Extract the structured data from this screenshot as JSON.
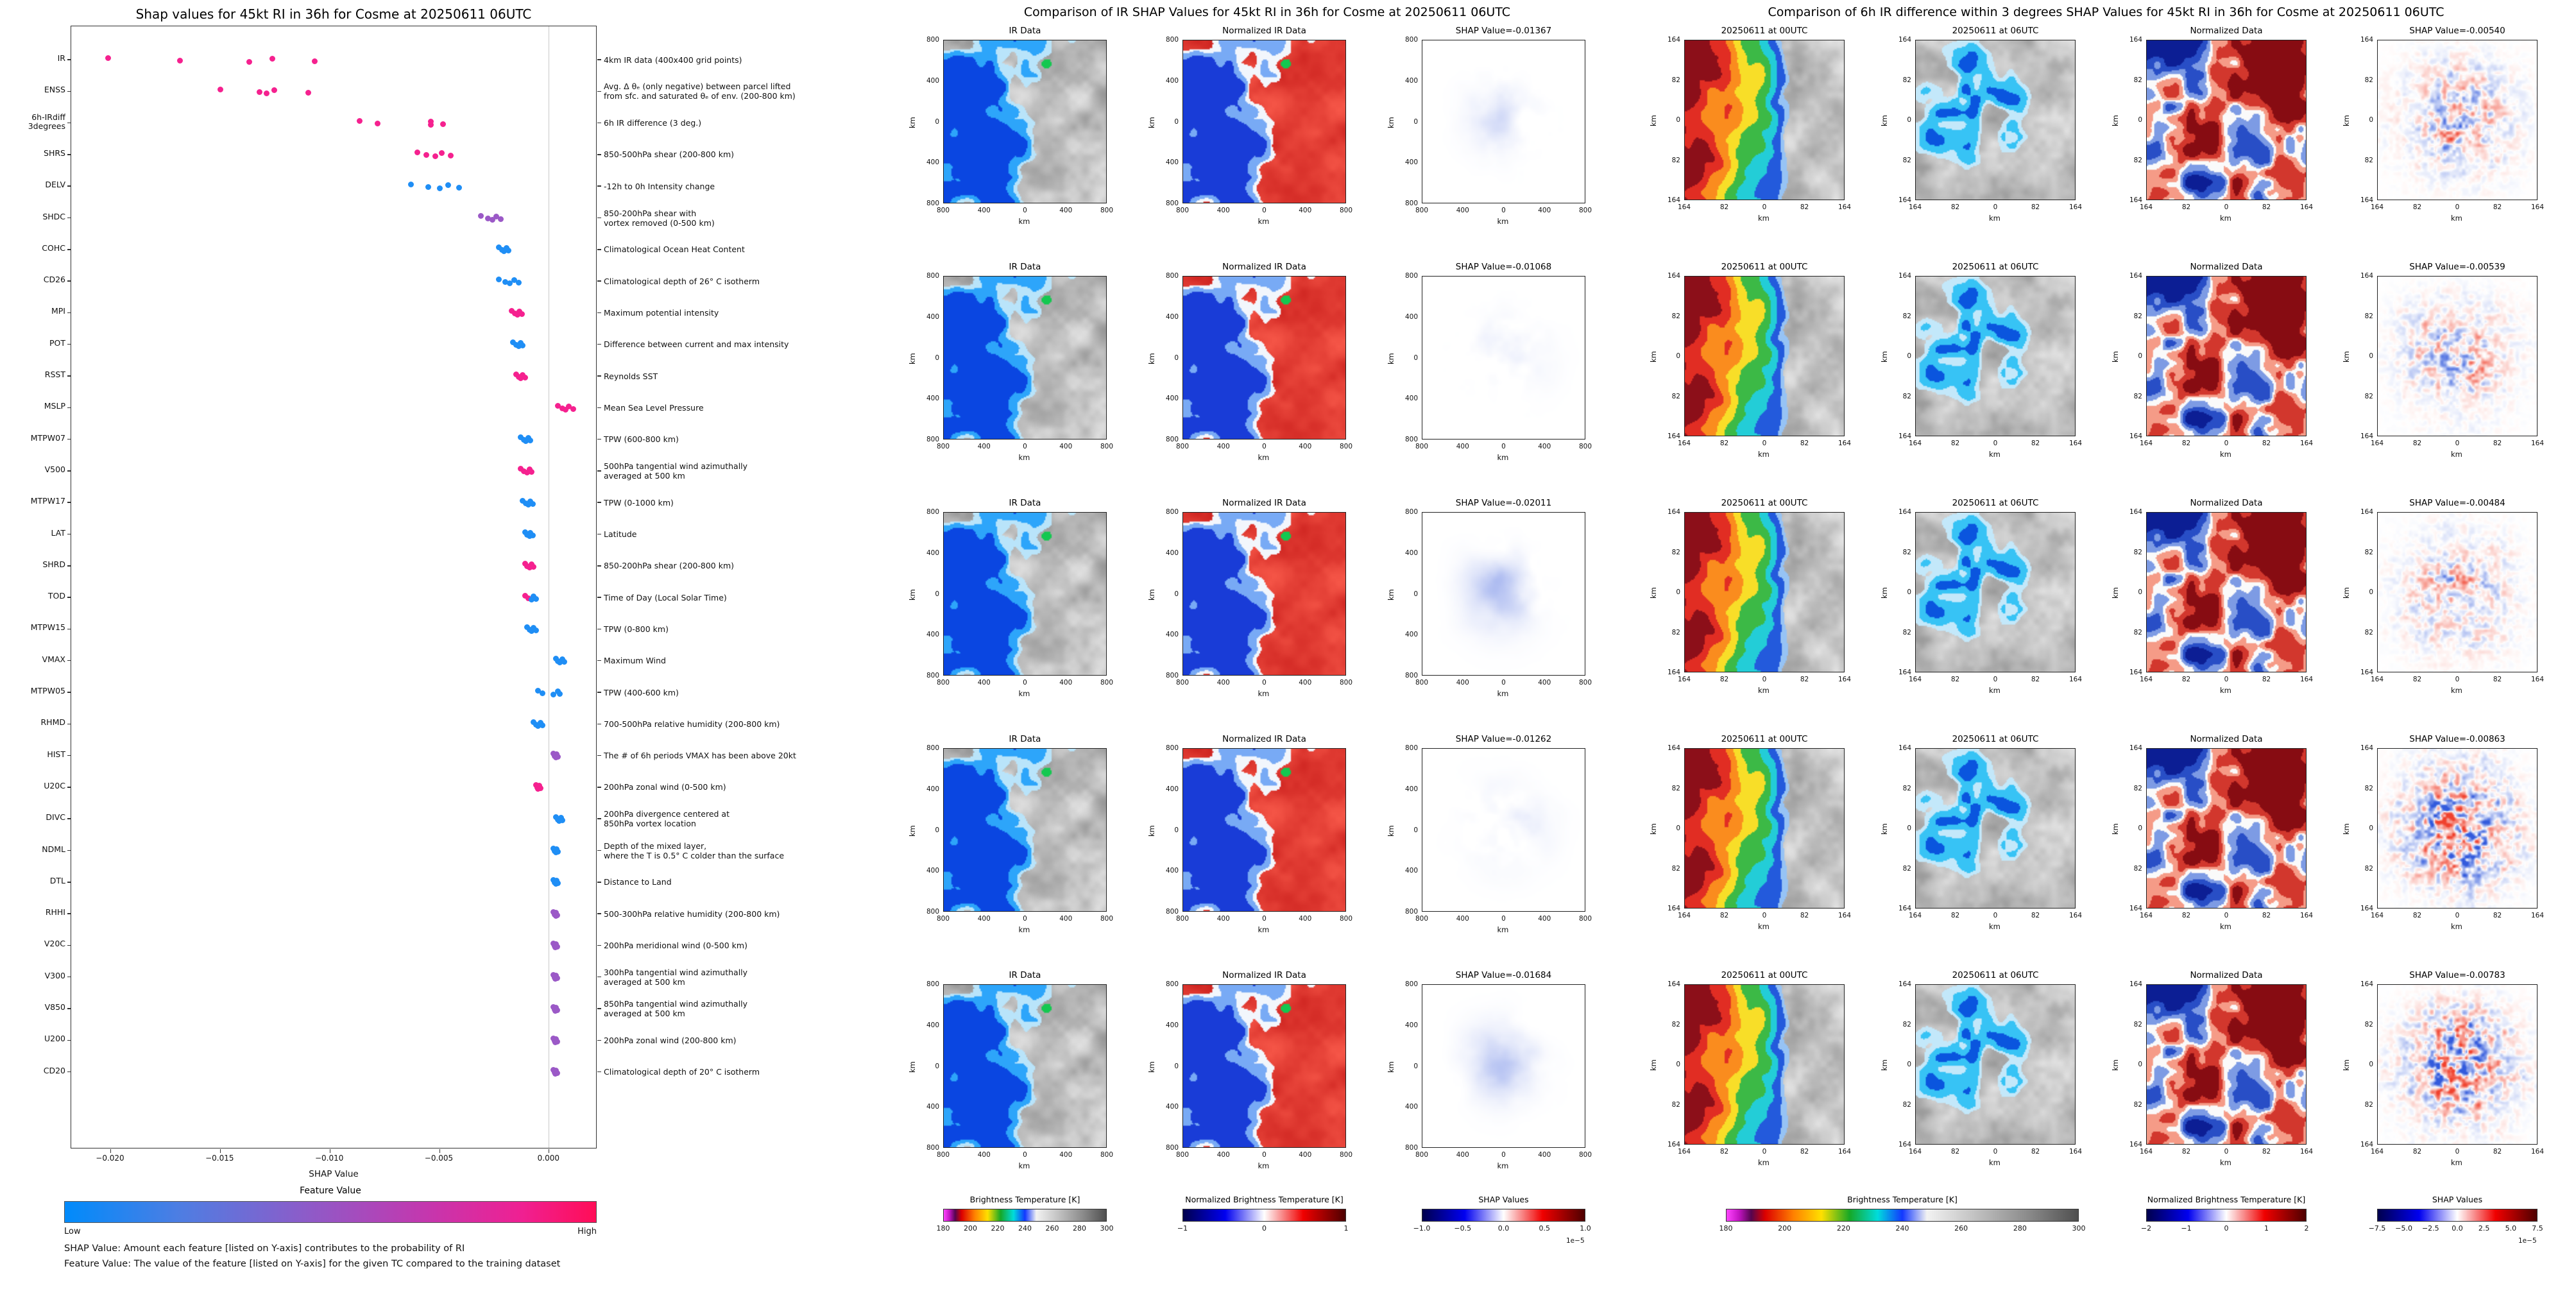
{
  "left": {
    "xlabel": "SHAP Value",
    "xticks": [
      "−0.020",
      "−0.015",
      "−0.010",
      "−0.005",
      "0.000"
    ],
    "colorbar": {
      "title": "Feature Value",
      "low": "Low",
      "high": "High",
      "low_color": "#008bfb",
      "high_color": "#ff0d57"
    },
    "footnote1": "SHAP Value: Amount each feature [listed on Y-axis] contributes to the probability of RI",
    "footnote2": "Feature Value: The value of the feature [listed on Y-axis] for the given TC compared to the training dataset"
  },
  "middle": {
    "title": "Comparison of IR SHAP Values for 45kt RI in 36h for Cosme at 20250611 06UTC",
    "col_titles": [
      "IR Data",
      "Normalized IR Data"
    ],
    "shap_titles": [
      "SHAP Value=-0.01367",
      "SHAP Value=-0.01068",
      "SHAP Value=-0.02011",
      "SHAP Value=-0.01262",
      "SHAP Value=-0.01684"
    ],
    "axis_ticks": [
      "800",
      "400",
      "0",
      "400",
      "800"
    ],
    "axis_label": "km",
    "colorbars": [
      {
        "label": "Brightness Temperature [K]",
        "ticks": [
          "180",
          "200",
          "220",
          "240",
          "260",
          "280",
          "300"
        ],
        "type": "ir"
      },
      {
        "label": "Normalized Brightness Temperature [K]",
        "ticks": [
          "−1",
          "0",
          "1"
        ],
        "type": "seismic"
      },
      {
        "label": "SHAP Values",
        "ticks": [
          "−1.0",
          "−0.5",
          "0.0",
          "0.5",
          "1.0"
        ],
        "offset": "1e−5",
        "type": "seismic"
      }
    ]
  },
  "right": {
    "title": "Comparison of 6h IR difference within 3 degrees SHAP Values for 45kt RI in 36h for Cosme at 20250611 06UTC",
    "col_titles": [
      "20250611 at 00UTC",
      "20250611 at 06UTC",
      "Normalized Data"
    ],
    "shap_titles": [
      "SHAP Value=-0.00540",
      "SHAP Value=-0.00539",
      "SHAP Value=-0.00484",
      "SHAP Value=-0.00863",
      "SHAP Value=-0.00783"
    ],
    "axis_ticks": [
      "164",
      "82",
      "0",
      "82",
      "164"
    ],
    "axis_label": "km",
    "colorbars": [
      {
        "label": "Brightness Temperature [K]",
        "ticks": [
          "180",
          "200",
          "220",
          "240",
          "260",
          "280",
          "300"
        ],
        "type": "ir"
      },
      {
        "label": "Normalized Brightness Temperature [K]",
        "ticks": [
          "−2",
          "−1",
          "0",
          "1",
          "2"
        ],
        "type": "seismic"
      },
      {
        "label": "SHAP Values",
        "ticks": [
          "−7.5",
          "−5.0",
          "−2.5",
          "0.0",
          "2.5",
          "5.0",
          "7.5"
        ],
        "offset": "1e−5",
        "type": "seismic"
      }
    ]
  },
  "chart_data": [
    {
      "type": "scatter",
      "title": "Shap values for 45kt RI in 36h for Cosme at 20250611 06UTC",
      "xlabel": "SHAP Value",
      "xlim": [
        -0.0218,
        0.0022
      ],
      "xticks": [
        -0.02,
        -0.015,
        -0.01,
        -0.005,
        0.0
      ],
      "legend": "Feature Value (Low=blue, High=pink)",
      "series": [
        {
          "name": "IR",
          "desc": "4km IR data (400x400 grid points)",
          "color": "#f5218f",
          "x": [
            -0.02011,
            -0.01684,
            -0.01367,
            -0.01262,
            -0.01068
          ]
        },
        {
          "name": "ENSS",
          "desc": "Avg. Δ θₑ (only negative) between parcel lifted\nfrom sfc. and saturated θₑ of env. (200-800 km)",
          "color": "#f5218f",
          "x": [
            -0.015,
            -0.0132,
            -0.0129,
            -0.01255,
            -0.011
          ]
        },
        {
          "name": "6h-IRdiff\n3degrees",
          "desc": "6h IR difference (3 deg.)",
          "color": "#f5218f",
          "x": [
            -0.00863,
            -0.00783,
            -0.0054,
            -0.00539,
            -0.00484
          ]
        },
        {
          "name": "SHRS",
          "desc": "850-500hPa shear (200-800 km)",
          "color": "#f5218f",
          "x": [
            -0.006,
            -0.0056,
            -0.0052,
            -0.0049,
            -0.0045
          ]
        },
        {
          "name": "DELV",
          "desc": "-12h to 0h Intensity change",
          "color": "#1f8ef5",
          "x": [
            -0.0063,
            -0.0055,
            -0.005,
            -0.0046,
            -0.0041
          ]
        },
        {
          "name": "SHDC",
          "desc": "850-200hPa shear with\nvortex removed (0-500 km)",
          "color": "#9b59c7",
          "x": [
            -0.0031,
            -0.0028,
            -0.0026,
            -0.0024,
            -0.0022
          ]
        },
        {
          "name": "COHC",
          "desc": "Climatological Ocean Heat Content",
          "color": "#1f8ef5",
          "x": [
            -0.0023,
            -0.00215,
            -0.00205,
            -0.00195,
            -0.00185
          ]
        },
        {
          "name": "CD26",
          "desc": "Climatological depth of 26° C isotherm",
          "color": "#1f8ef5",
          "x": [
            -0.0023,
            -0.002,
            -0.0018,
            -0.0016,
            -0.0014
          ]
        },
        {
          "name": "MPI",
          "desc": "Maximum potential intensity",
          "color": "#f5218f",
          "x": [
            -0.0017,
            -0.00155,
            -0.00145,
            -0.00135,
            -0.00125
          ]
        },
        {
          "name": "POT",
          "desc": "Difference between current and max intensity",
          "color": "#1f8ef5",
          "x": [
            -0.00165,
            -0.0015,
            -0.0014,
            -0.0013,
            -0.0012
          ]
        },
        {
          "name": "RSST",
          "desc": "Reynolds SST",
          "color": "#f5218f",
          "x": [
            -0.0015,
            -0.0014,
            -0.0013,
            -0.0012,
            -0.0011
          ]
        },
        {
          "name": "MSLP",
          "desc": "Mean Sea Level Pressure",
          "color": "#f5218f",
          "x": [
            0.0004,
            0.0006,
            0.00075,
            0.0009,
            0.0011
          ]
        },
        {
          "name": "MTPW07",
          "desc": "TPW (600-800 km)",
          "color": "#1f8ef5",
          "x": [
            -0.0013,
            -0.00115,
            -0.00105,
            -0.00095,
            -0.00085
          ]
        },
        {
          "name": "V500",
          "desc": "500hPa tangential wind azimuthally\naveraged at 500 km",
          "color": "#f5218f",
          "x": [
            -0.0013,
            -0.00115,
            -0.001,
            -0.0009,
            -0.0008
          ]
        },
        {
          "name": "MTPW17",
          "desc": "TPW (0-1000 km)",
          "color": "#1f8ef5",
          "x": [
            -0.0012,
            -0.00105,
            -0.00095,
            -0.00085,
            -0.00075
          ]
        },
        {
          "name": "LAT",
          "desc": "Latitude",
          "color": "#1f8ef5",
          "x": [
            -0.0011,
            -0.001,
            -0.0009,
            -0.00085,
            -0.00075
          ]
        },
        {
          "name": "SHRD",
          "desc": "850-200hPa shear (200-800 km)",
          "color": "#f5218f",
          "x": [
            -0.0011,
            -0.001,
            -0.0009,
            -0.0008,
            -0.0007
          ]
        },
        {
          "name": "TOD",
          "desc": "Time of Day (Local Solar Time)",
          "color": "#f5218f",
          "colors": [
            "#f5218f",
            "#f5218f",
            "#1f8ef5",
            "#1f8ef5",
            "#1f8ef5"
          ],
          "x": [
            -0.0011,
            -0.00095,
            -0.0008,
            -0.0007,
            -0.0006
          ]
        },
        {
          "name": "MTPW15",
          "desc": "TPW (0-800 km)",
          "color": "#1f8ef5",
          "x": [
            -0.001,
            -0.0009,
            -0.0008,
            -0.0007,
            -0.0006
          ]
        },
        {
          "name": "VMAX",
          "desc": "Maximum Wind",
          "color": "#1f8ef5",
          "x": [
            0.0003,
            0.0004,
            0.0005,
            0.0006,
            0.0007
          ]
        },
        {
          "name": "MTPW05",
          "desc": "TPW (400-600 km)",
          "color": "#1f8ef5",
          "x": [
            -0.0005,
            -0.0003,
            0.0002,
            0.0004,
            0.0005
          ]
        },
        {
          "name": "RHMD",
          "desc": "700-500hPa relative humidity (200-800 km)",
          "color": "#1f8ef5",
          "x": [
            -0.0007,
            -0.0006,
            -0.0005,
            -0.0004,
            -0.0003
          ]
        },
        {
          "name": "HIST",
          "desc": "The # of 6h periods VMAX has been above 20kt",
          "color": "#9b59c7",
          "x": [
            0.0002,
            0.00025,
            0.0003,
            0.00035,
            0.0004
          ]
        },
        {
          "name": "U20C",
          "desc": "200hPa zonal wind (0-500 km)",
          "color": "#f5218f",
          "x": [
            -0.0006,
            -0.00055,
            -0.0005,
            -0.00045,
            -0.0004
          ]
        },
        {
          "name": "DIVC",
          "desc": "200hPa divergence centered at\n850hPa vortex location",
          "color": "#1f8ef5",
          "x": [
            0.0003,
            0.0004,
            0.00045,
            0.00055,
            0.0006
          ]
        },
        {
          "name": "NDML",
          "desc": "Depth of the mixed layer,\nwhere the T is 0.5° C colder than the surface",
          "color": "#1f8ef5",
          "x": [
            0.0002,
            0.00025,
            0.0003,
            0.00035,
            0.0004
          ]
        },
        {
          "name": "DTL",
          "desc": "Distance to Land",
          "color": "#1f8ef5",
          "x": [
            0.0002,
            0.00025,
            0.0003,
            0.00035,
            0.0004
          ]
        },
        {
          "name": "RHHI",
          "desc": "500-300hPa relative humidity (200-800 km)",
          "color": "#9b59c7",
          "x": [
            0.0002,
            0.00025,
            0.0003,
            0.00032,
            0.00038
          ]
        },
        {
          "name": "V20C",
          "desc": "200hPa meridional wind (0-500 km)",
          "color": "#9b59c7",
          "x": [
            0.0002,
            0.00024,
            0.00028,
            0.00032,
            0.00036
          ]
        },
        {
          "name": "V300",
          "desc": "300hPa tangential wind azimuthally\naveraged at 500 km",
          "color": "#9b59c7",
          "x": [
            0.0002,
            0.00024,
            0.00028,
            0.00032,
            0.00036
          ]
        },
        {
          "name": "V850",
          "desc": "850hPa tangential wind azimuthally\naveraged at 500 km",
          "color": "#9b59c7",
          "x": [
            0.0002,
            0.00024,
            0.00028,
            0.00032,
            0.00036
          ]
        },
        {
          "name": "U200",
          "desc": "200hPa zonal wind (200-800 km)",
          "color": "#9b59c7",
          "x": [
            0.0002,
            0.00024,
            0.00028,
            0.00032,
            0.00036
          ]
        },
        {
          "name": "CD20",
          "desc": "Climatological depth of 20° C isotherm",
          "color": "#9b59c7",
          "x": [
            0.0002,
            0.00024,
            0.00028,
            0.00032,
            0.00036
          ]
        }
      ]
    },
    {
      "type": "heatmap",
      "title": "Comparison of IR SHAP Values for 45kt RI in 36h for Cosme at 20250611 06UTC",
      "rows": 5,
      "columns": [
        "IR Data",
        "Normalized IR Data",
        "SHAP Value"
      ],
      "row_shap_values": [
        -0.01367,
        -0.01068,
        -0.02011,
        -0.01262,
        -0.01684
      ],
      "axis_km": [
        -800,
        800
      ],
      "colorbars": [
        {
          "label": "Brightness Temperature [K]",
          "range": [
            180,
            300
          ]
        },
        {
          "label": "Normalized Brightness Temperature [K]",
          "range": [
            -1,
            1
          ]
        },
        {
          "label": "SHAP Values",
          "range": [
            -1e-05,
            1e-05
          ]
        }
      ]
    },
    {
      "type": "heatmap",
      "title": "Comparison of 6h IR difference within 3 degrees SHAP Values for 45kt RI in 36h for Cosme at 20250611 06UTC",
      "rows": 5,
      "columns": [
        "20250611 at 00UTC",
        "20250611 at 06UTC",
        "Normalized Data",
        "SHAP Value"
      ],
      "row_shap_values": [
        -0.0054,
        -0.00539,
        -0.00484,
        -0.00863,
        -0.00783
      ],
      "axis_km": [
        -164,
        164
      ],
      "colorbars": [
        {
          "label": "Brightness Temperature [K]",
          "range": [
            180,
            300
          ]
        },
        {
          "label": "Normalized Brightness Temperature [K]",
          "range": [
            -2,
            2
          ]
        },
        {
          "label": "SHAP Values",
          "range": [
            -7.5e-05,
            7.5e-05
          ]
        }
      ]
    }
  ]
}
